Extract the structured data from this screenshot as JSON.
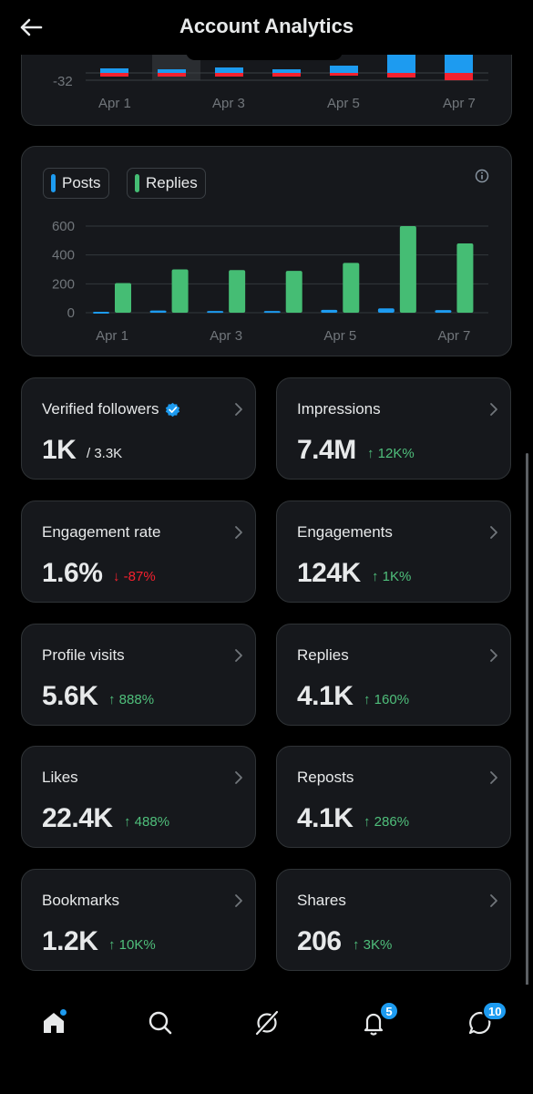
{
  "header": {
    "title": "Account Analytics"
  },
  "top_chart": {
    "y_tick": "-32",
    "x_ticks": [
      "Apr 1",
      "Apr 3",
      "Apr 5",
      "Apr 7"
    ]
  },
  "chart_data": {
    "type": "bar",
    "categories": [
      "Apr 1",
      "Apr 2",
      "Apr 3",
      "Apr 4",
      "Apr 5",
      "Apr 6",
      "Apr 7"
    ],
    "x_tick_labels": [
      "Apr 1",
      "Apr 3",
      "Apr 5",
      "Apr 7"
    ],
    "y_ticks": [
      0,
      200,
      400,
      600
    ],
    "ylim": [
      0,
      620
    ],
    "grid": true,
    "legend": [
      "Posts",
      "Replies"
    ],
    "series": [
      {
        "name": "Posts",
        "values": [
          6,
          15,
          12,
          12,
          20,
          30,
          18
        ],
        "color": "#1d9bf0"
      },
      {
        "name": "Replies",
        "values": [
          205,
          300,
          295,
          290,
          345,
          600,
          480
        ],
        "color": "#45bd74"
      }
    ]
  },
  "stats": [
    {
      "label": "Verified followers",
      "value": "1K",
      "extra": "/ 3.3K",
      "extra_type": "total",
      "verified": true
    },
    {
      "label": "Impressions",
      "value": "7.4M",
      "extra": "12K%",
      "extra_type": "up"
    },
    {
      "label": "Engagement rate",
      "value": "1.6%",
      "extra": "-87%",
      "extra_type": "down"
    },
    {
      "label": "Engagements",
      "value": "124K",
      "extra": "1K%",
      "extra_type": "up"
    },
    {
      "label": "Profile visits",
      "value": "5.6K",
      "extra": "888%",
      "extra_type": "up"
    },
    {
      "label": "Replies",
      "value": "4.1K",
      "extra": "160%",
      "extra_type": "up"
    },
    {
      "label": "Likes",
      "value": "22.4K",
      "extra": "488%",
      "extra_type": "up"
    },
    {
      "label": "Reposts",
      "value": "4.1K",
      "extra": "286%",
      "extra_type": "up"
    },
    {
      "label": "Bookmarks",
      "value": "1.2K",
      "extra": "10K%",
      "extra_type": "up"
    },
    {
      "label": "Shares",
      "value": "206",
      "extra": "3K%",
      "extra_type": "up"
    }
  ],
  "nav": {
    "notifications_badge": "5",
    "messages_badge": "10"
  },
  "colors": {
    "posts": "#1d9bf0",
    "replies": "#45bd74",
    "up": "#4fbf7b",
    "down": "#f4212e"
  }
}
